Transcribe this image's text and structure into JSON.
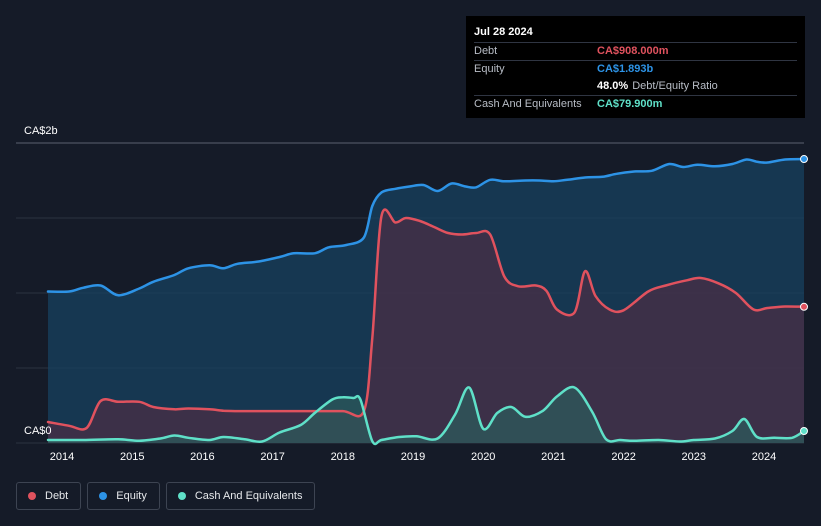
{
  "tooltip": {
    "date": "Jul 28 2024",
    "debt_label": "Debt",
    "debt_value": "CA$908.000m",
    "equity_label": "Equity",
    "equity_value": "CA$1.893b",
    "ratio_value": "48.0%",
    "ratio_label": "Debt/Equity Ratio",
    "cash_label": "Cash And Equivalents",
    "cash_value": "CA$79.900m"
  },
  "colors": {
    "debt": "#e0525e",
    "equity": "#2d93e6",
    "cash": "#5fe0c8",
    "background": "#151b28"
  },
  "legend": [
    {
      "name": "Debt",
      "color": "#e0525e"
    },
    {
      "name": "Equity",
      "color": "#2d93e6"
    },
    {
      "name": "Cash And Equivalents",
      "color": "#5fe0c8"
    }
  ],
  "chart_data": {
    "type": "area",
    "y_unit": "CA$m",
    "y_tick_labels": [
      "CA$2b",
      "CA$0"
    ],
    "ylim": [
      0,
      2000
    ],
    "xlim": [
      2013.8,
      2024.57
    ],
    "x_tick_labels": [
      "2014",
      "2015",
      "2016",
      "2017",
      "2018",
      "2019",
      "2020",
      "2021",
      "2022",
      "2023",
      "2024"
    ],
    "x_ticks": [
      2014,
      2015,
      2016,
      2017,
      2018,
      2019,
      2020,
      2021,
      2022,
      2023,
      2024
    ],
    "grid": true,
    "series": [
      {
        "name": "Debt",
        "x": [
          2013.8,
          2014.1,
          2014.35,
          2014.55,
          2014.8,
          2015.1,
          2015.3,
          2015.6,
          2015.8,
          2016.1,
          2016.3,
          2016.5,
          2017.0,
          2017.5,
          2018.0,
          2018.3,
          2018.42,
          2018.55,
          2018.75,
          2018.9,
          2019.1,
          2019.3,
          2019.5,
          2019.7,
          2019.9,
          2020.1,
          2020.3,
          2020.5,
          2020.75,
          2020.9,
          2021.05,
          2021.3,
          2021.45,
          2021.6,
          2021.8,
          2022.0,
          2022.35,
          2022.6,
          2022.9,
          2023.1,
          2023.35,
          2023.6,
          2023.85,
          2024.05,
          2024.3,
          2024.57
        ],
        "values": [
          140,
          115,
          100,
          280,
          275,
          275,
          240,
          225,
          230,
          225,
          215,
          213,
          213,
          213,
          213,
          213,
          700,
          1510,
          1470,
          1500,
          1480,
          1440,
          1400,
          1390,
          1400,
          1390,
          1110,
          1045,
          1050,
          1015,
          890,
          870,
          1145,
          980,
          890,
          885,
          1010,
          1050,
          1085,
          1100,
          1065,
          1000,
          890,
          900,
          910,
          908
        ]
      },
      {
        "name": "Equity",
        "x": [
          2013.8,
          2014.1,
          2014.3,
          2014.55,
          2014.8,
          2015.1,
          2015.3,
          2015.6,
          2015.8,
          2016.1,
          2016.3,
          2016.5,
          2016.8,
          2017.1,
          2017.3,
          2017.6,
          2017.8,
          2018.05,
          2018.3,
          2018.42,
          2018.55,
          2018.75,
          2018.95,
          2019.15,
          2019.35,
          2019.55,
          2019.75,
          2019.9,
          2020.1,
          2020.3,
          2020.6,
          2020.8,
          2021.0,
          2021.2,
          2021.45,
          2021.7,
          2021.9,
          2022.15,
          2022.4,
          2022.65,
          2022.85,
          2023.05,
          2023.3,
          2023.55,
          2023.75,
          2023.9,
          2024.05,
          2024.3,
          2024.57
        ],
        "values": [
          1010,
          1010,
          1035,
          1050,
          985,
          1030,
          1075,
          1120,
          1165,
          1185,
          1165,
          1195,
          1210,
          1240,
          1265,
          1265,
          1305,
          1320,
          1370,
          1580,
          1670,
          1695,
          1710,
          1720,
          1680,
          1730,
          1710,
          1705,
          1755,
          1745,
          1750,
          1750,
          1745,
          1755,
          1770,
          1775,
          1795,
          1810,
          1815,
          1860,
          1840,
          1855,
          1845,
          1860,
          1890,
          1875,
          1870,
          1890,
          1893
        ]
      },
      {
        "name": "Cash And Equivalents",
        "x": [
          2013.8,
          2014.3,
          2014.8,
          2015.1,
          2015.4,
          2015.6,
          2015.8,
          2016.1,
          2016.3,
          2016.6,
          2016.85,
          2017.1,
          2017.4,
          2017.6,
          2017.85,
          2018.0,
          2018.15,
          2018.25,
          2018.42,
          2018.55,
          2018.8,
          2019.05,
          2019.35,
          2019.6,
          2019.8,
          2020.0,
          2020.2,
          2020.4,
          2020.6,
          2020.85,
          2021.05,
          2021.3,
          2021.55,
          2021.75,
          2021.95,
          2022.15,
          2022.5,
          2022.8,
          2023.0,
          2023.3,
          2023.55,
          2023.72,
          2023.9,
          2024.15,
          2024.4,
          2024.57
        ],
        "values": [
          20,
          20,
          25,
          15,
          30,
          50,
          35,
          20,
          40,
          25,
          10,
          70,
          120,
          200,
          290,
          305,
          300,
          290,
          12,
          20,
          40,
          45,
          30,
          190,
          370,
          95,
          200,
          240,
          175,
          215,
          310,
          370,
          210,
          25,
          20,
          15,
          20,
          10,
          20,
          30,
          80,
          160,
          40,
          35,
          35,
          79.9
        ]
      }
    ]
  }
}
